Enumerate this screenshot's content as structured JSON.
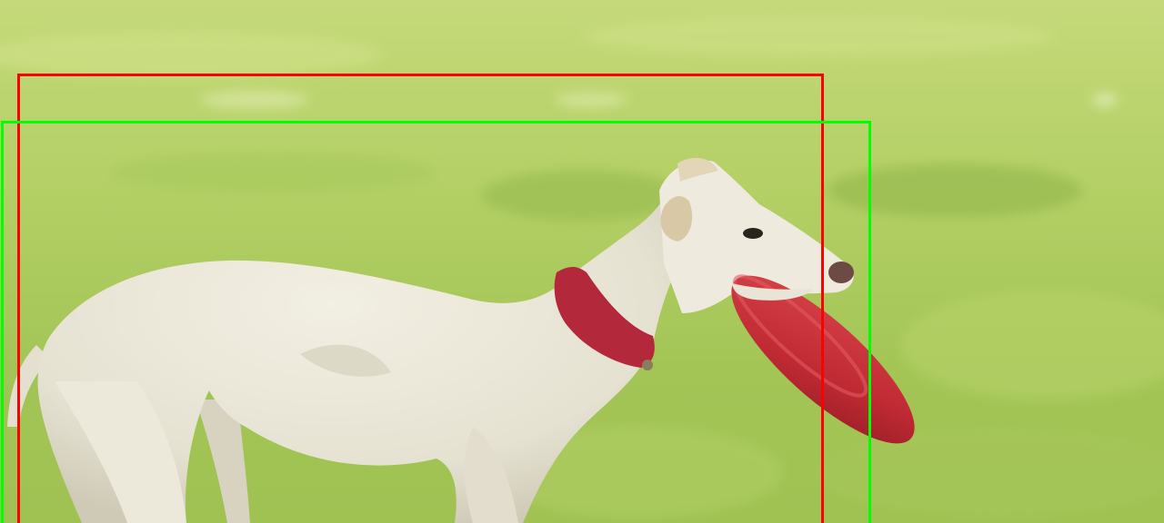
{
  "scene": {
    "subject": "whippet-dog",
    "object": "frisbee",
    "background": "grass-field"
  },
  "colors": {
    "grass_light": "#c8dc7a",
    "grass_mid": "#a9c95a",
    "grass_dark": "#8fb449",
    "dog_body": "#ebe8da",
    "dog_shadow": "#cfcab8",
    "collar": "#b3283a",
    "frisbee": "#c92d36",
    "frisbee_rim": "#a61f29",
    "box_red": "#ff0000",
    "box_green": "#00ff00"
  },
  "boxes": [
    {
      "name": "bounding-box-red",
      "color": "#ff0000"
    },
    {
      "name": "bounding-box-green",
      "color": "#00ff00"
    }
  ]
}
